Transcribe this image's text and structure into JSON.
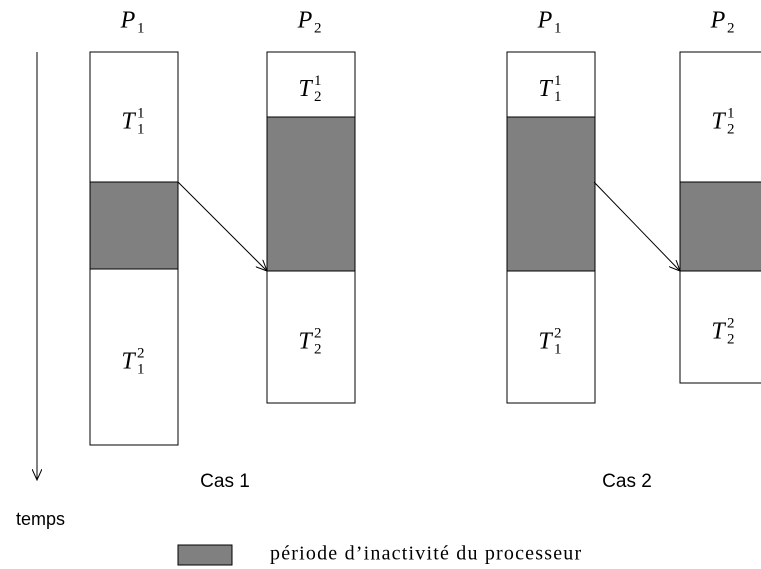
{
  "cases": [
    {
      "label": "Cas 1",
      "processors": [
        {
          "name": "P",
          "index": "1",
          "tasks": [
            {
              "name": "T",
              "sub": "1",
              "sup": "1"
            },
            {
              "name": "T",
              "sub": "1",
              "sup": "2"
            }
          ]
        },
        {
          "name": "P",
          "index": "2",
          "tasks": [
            {
              "name": "T",
              "sub": "2",
              "sup": "1"
            },
            {
              "name": "T",
              "sub": "2",
              "sup": "2"
            }
          ]
        }
      ]
    },
    {
      "label": "Cas 2",
      "processors": [
        {
          "name": "P",
          "index": "1",
          "tasks": [
            {
              "name": "T",
              "sub": "1",
              "sup": "1"
            },
            {
              "name": "T",
              "sub": "1",
              "sup": "2"
            }
          ]
        },
        {
          "name": "P",
          "index": "2",
          "tasks": [
            {
              "name": "T",
              "sub": "2",
              "sup": "1"
            },
            {
              "name": "T",
              "sub": "2",
              "sup": "2"
            }
          ]
        }
      ]
    }
  ],
  "time_axis": "temps",
  "legend": "période d’inactivité du processeur"
}
